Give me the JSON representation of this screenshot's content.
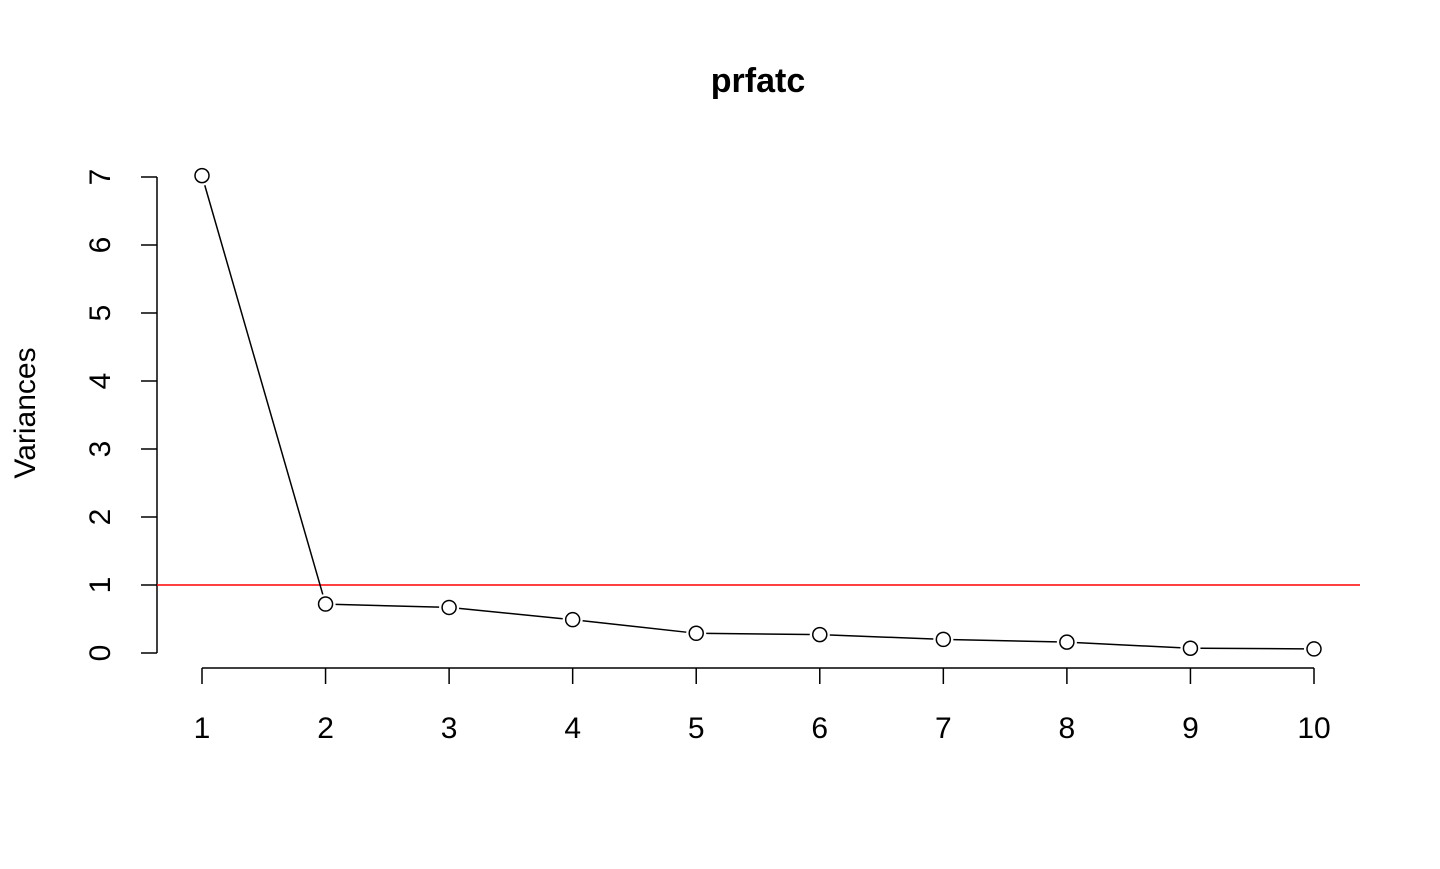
{
  "chart_data": {
    "type": "line",
    "title": "prfatc",
    "xlabel": "",
    "ylabel": "Variances",
    "x": [
      1,
      2,
      3,
      4,
      5,
      6,
      7,
      8,
      9,
      10
    ],
    "x_tick_labels": [
      "1",
      "2",
      "3",
      "4",
      "5",
      "6",
      "7",
      "8",
      "9",
      "10"
    ],
    "y_ticks": [
      0,
      1,
      2,
      3,
      4,
      5,
      6,
      7
    ],
    "y_tick_labels": [
      "0",
      "1",
      "2",
      "3",
      "4",
      "5",
      "6",
      "7"
    ],
    "ylim": [
      0,
      7
    ],
    "series": [
      {
        "values": [
          7.02,
          0.72,
          0.67,
          0.49,
          0.29,
          0.27,
          0.2,
          0.16,
          0.07,
          0.06
        ]
      }
    ],
    "reference_line": {
      "y": 1,
      "color": "#ff0000"
    },
    "line_color": "#000000",
    "marker": "open-circle",
    "grid": false
  }
}
